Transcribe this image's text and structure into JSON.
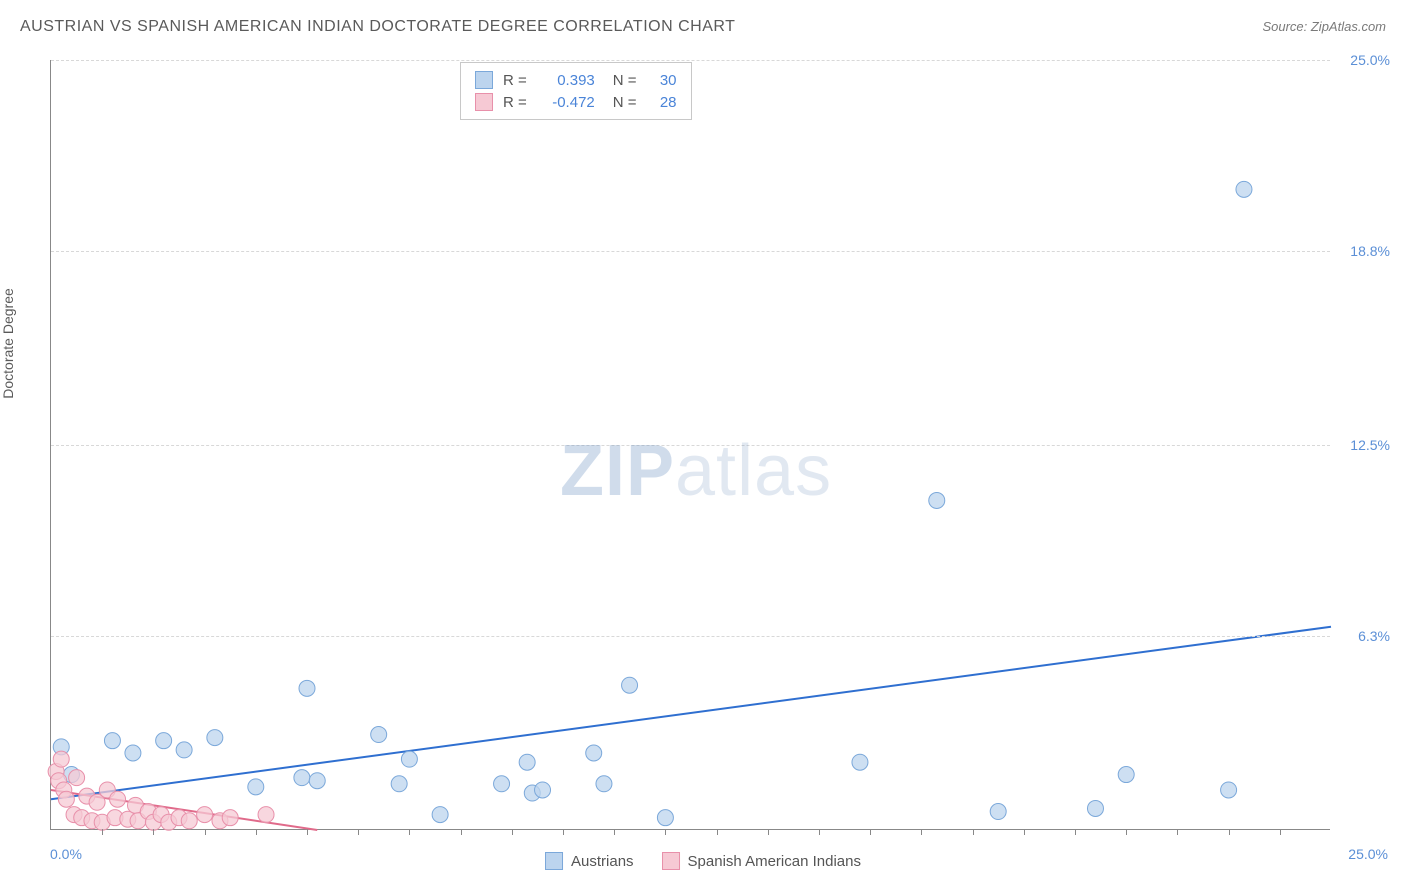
{
  "header": {
    "title": "AUSTRIAN VS SPANISH AMERICAN INDIAN DOCTORATE DEGREE CORRELATION CHART",
    "source": "Source: ZipAtlas.com"
  },
  "ylabel": "Doctorate Degree",
  "watermark": {
    "part1": "ZIP",
    "part2": "atlas"
  },
  "chart": {
    "type": "scatter",
    "xlim": [
      0,
      25
    ],
    "ylim": [
      0,
      25
    ],
    "xticks_minor": [
      1,
      2,
      3,
      4,
      5,
      6,
      7,
      8,
      9,
      10,
      11,
      12,
      13,
      14,
      15,
      16,
      17,
      18,
      19,
      20,
      21,
      22,
      23,
      24
    ],
    "ytick_labels": [
      "6.3%",
      "12.5%",
      "18.8%",
      "25.0%"
    ],
    "ytick_vals": [
      6.3,
      12.5,
      18.8,
      25.0
    ],
    "xmin_label": "0.0%",
    "xmax_label": "25.0%",
    "background_color": "#ffffff",
    "grid_color": "#d8d8d8",
    "axis_color": "#888888",
    "series": [
      {
        "name": "Austrians",
        "fill": "#bcd4ee",
        "stroke": "#7ba8da",
        "marker_radius": 8,
        "trend": {
          "x1": 0,
          "y1": 1.0,
          "x2": 25,
          "y2": 6.6,
          "color": "#2f6fd0",
          "width": 2
        },
        "R": "0.393",
        "N": "30",
        "points": [
          [
            0.2,
            2.7
          ],
          [
            0.4,
            1.8
          ],
          [
            1.2,
            2.9
          ],
          [
            1.6,
            2.5
          ],
          [
            2.2,
            2.9
          ],
          [
            2.6,
            2.6
          ],
          [
            3.2,
            3.0
          ],
          [
            4.0,
            1.4
          ],
          [
            4.9,
            1.7
          ],
          [
            5.0,
            4.6
          ],
          [
            5.2,
            1.6
          ],
          [
            6.4,
            3.1
          ],
          [
            6.8,
            1.5
          ],
          [
            7.0,
            2.3
          ],
          [
            7.6,
            0.5
          ],
          [
            8.8,
            1.5
          ],
          [
            9.3,
            2.2
          ],
          [
            9.4,
            1.2
          ],
          [
            9.6,
            1.3
          ],
          [
            10.6,
            2.5
          ],
          [
            10.8,
            1.5
          ],
          [
            11.3,
            4.7
          ],
          [
            12.0,
            0.4
          ],
          [
            15.8,
            2.2
          ],
          [
            17.3,
            10.7
          ],
          [
            18.5,
            0.6
          ],
          [
            20.4,
            0.7
          ],
          [
            21.0,
            1.8
          ],
          [
            23.0,
            1.3
          ],
          [
            23.3,
            20.8
          ]
        ]
      },
      {
        "name": "Spanish American Indians",
        "fill": "#f6c9d4",
        "stroke": "#e890aa",
        "marker_radius": 8,
        "trend": {
          "x1": 0,
          "y1": 1.3,
          "x2": 5.2,
          "y2": 0.0,
          "color": "#e06a8a",
          "width": 2
        },
        "R": "-0.472",
        "N": "28",
        "points": [
          [
            0.1,
            1.9
          ],
          [
            0.15,
            1.6
          ],
          [
            0.2,
            2.3
          ],
          [
            0.25,
            1.3
          ],
          [
            0.3,
            1.0
          ],
          [
            0.45,
            0.5
          ],
          [
            0.5,
            1.7
          ],
          [
            0.6,
            0.4
          ],
          [
            0.7,
            1.1
          ],
          [
            0.8,
            0.3
          ],
          [
            0.9,
            0.9
          ],
          [
            1.0,
            0.25
          ],
          [
            1.1,
            1.3
          ],
          [
            1.25,
            0.4
          ],
          [
            1.3,
            1.0
          ],
          [
            1.5,
            0.35
          ],
          [
            1.65,
            0.8
          ],
          [
            1.7,
            0.3
          ],
          [
            1.9,
            0.6
          ],
          [
            2.0,
            0.25
          ],
          [
            2.15,
            0.5
          ],
          [
            2.3,
            0.25
          ],
          [
            2.5,
            0.4
          ],
          [
            2.7,
            0.3
          ],
          [
            3.0,
            0.5
          ],
          [
            3.3,
            0.3
          ],
          [
            3.5,
            0.4
          ],
          [
            4.2,
            0.5
          ]
        ]
      }
    ]
  },
  "stats_legend": {
    "rows": [
      {
        "swatch_fill": "#bcd4ee",
        "swatch_stroke": "#7ba8da",
        "R_label": "R =",
        "R": "0.393",
        "N_label": "N =",
        "N": "30"
      },
      {
        "swatch_fill": "#f6c9d4",
        "swatch_stroke": "#e890aa",
        "R_label": "R =",
        "R": "-0.472",
        "N_label": "N =",
        "N": "28"
      }
    ]
  },
  "bottom_legend": {
    "items": [
      {
        "swatch_fill": "#bcd4ee",
        "swatch_stroke": "#7ba8da",
        "label": "Austrians"
      },
      {
        "swatch_fill": "#f6c9d4",
        "swatch_stroke": "#e890aa",
        "label": "Spanish American Indians"
      }
    ]
  }
}
